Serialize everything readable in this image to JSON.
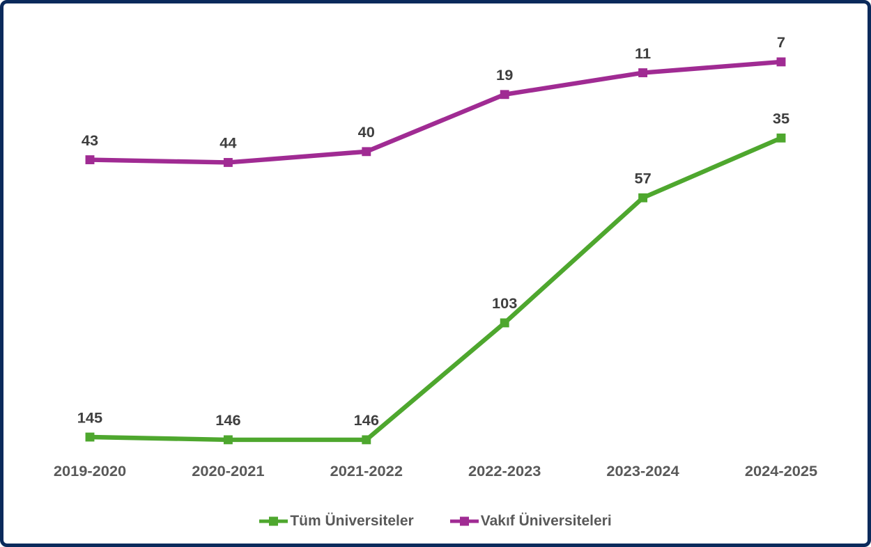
{
  "frame": {
    "border_color": "#0B2A5B",
    "background_color": "#FFFFFF"
  },
  "chart_data": {
    "type": "line",
    "title": "",
    "categories": [
      "2019-2020",
      "2020-2021",
      "2021-2022",
      "2022-2023",
      "2023-2024",
      "2024-2025"
    ],
    "series": [
      {
        "name": "Tüm Üniversiteler",
        "color": "#4EA72E",
        "values": [
          145,
          146,
          146,
          103,
          57,
          35
        ]
      },
      {
        "name": "Vakıf Üniversiteleri",
        "color": "#A02B93",
        "values": [
          43,
          44,
          40,
          19,
          11,
          7
        ]
      }
    ],
    "marker_shape": "square",
    "data_labels_shown": true,
    "grid": false,
    "y_axis": {
      "visible": false,
      "inverted": true,
      "value_min": 7,
      "value_max": 146
    },
    "x_axis": {
      "labels_visible": true
    },
    "legend_position": "bottom",
    "data_label_color": "#3F3F3F",
    "axis_label_color": "#595959",
    "legend_label_color": "#595959"
  }
}
